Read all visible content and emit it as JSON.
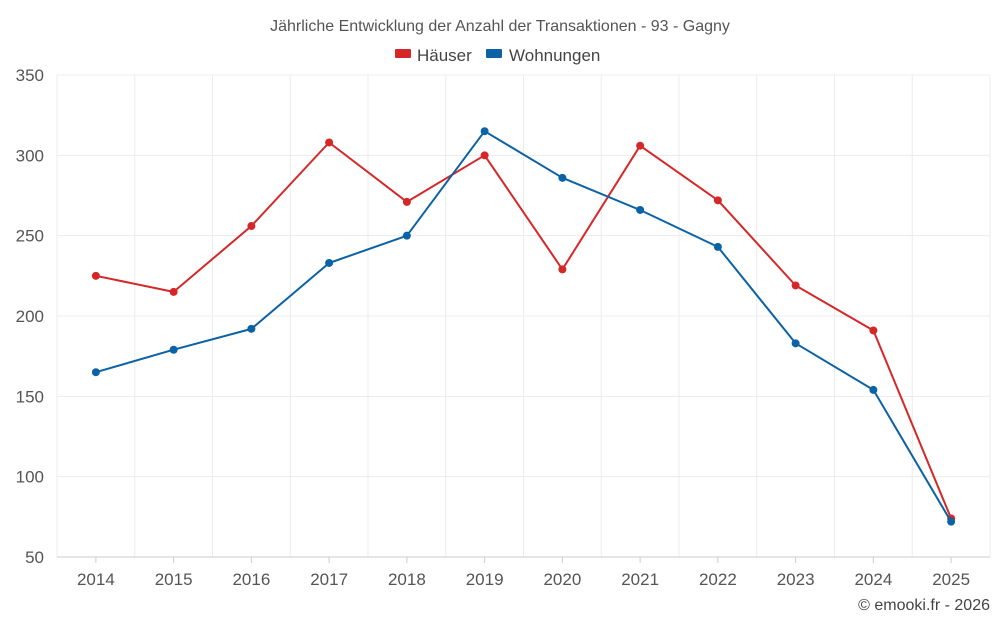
{
  "chart_data": {
    "type": "line",
    "title": "Jährliche Entwicklung der Anzahl der Transaktionen - 93 - Gagny",
    "categories": [
      "2014",
      "2015",
      "2016",
      "2017",
      "2018",
      "2019",
      "2020",
      "2021",
      "2022",
      "2023",
      "2024",
      "2025"
    ],
    "series": [
      {
        "name": "Häuser",
        "color": "#d62728",
        "values": [
          225,
          215,
          256,
          308,
          271,
          300,
          229,
          306,
          272,
          219,
          191,
          74
        ]
      },
      {
        "name": "Wohnungen",
        "color": "#0b62a4",
        "values": [
          165,
          179,
          192,
          233,
          250,
          315,
          286,
          266,
          243,
          183,
          154,
          72
        ]
      }
    ],
    "yticks": [
      50,
      100,
      150,
      200,
      250,
      300,
      350
    ],
    "ylim": [
      50,
      350
    ],
    "xlabel": "",
    "ylabel": "",
    "grid": true,
    "legend": "top-center"
  },
  "credit": "© emooki.fr - 2026"
}
